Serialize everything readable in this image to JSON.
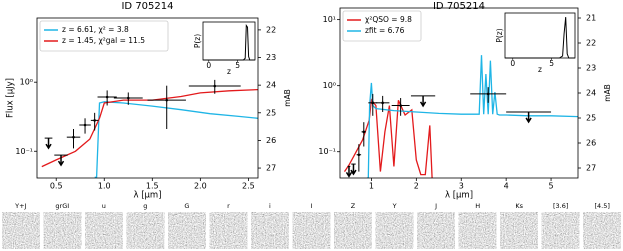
{
  "chart_data": [
    {
      "type": "line",
      "title": "ID 705214",
      "xlabel": "λ [μm]",
      "ylabel": "Flux [μJy]",
      "y2label": "mAB",
      "log_y": true,
      "legend": "upper left",
      "xlim": [
        0.3,
        2.6
      ],
      "xticks": [
        0.5,
        {
          "value": 1,
          "label": "1.0"
        },
        1.5,
        {
          "value": 2,
          "label": "2.0"
        },
        2.5
      ],
      "ylim": [
        0.041,
        8.5
      ],
      "yticks": [
        {
          "value": 0.1,
          "label": "10⁻¹"
        },
        {
          "value": 1,
          "label": "10⁰"
        }
      ],
      "y2lim": [
        27.36,
        21.57
      ],
      "y2ticks": [
        22,
        23,
        24,
        25,
        26,
        27
      ],
      "series": [
        {
          "name": "z = 6.61, χ² = 3.8",
          "color": "#1fb5e6",
          "x": [
            0.9,
            0.92,
            0.95,
            1.0,
            1.2,
            1.5,
            1.8,
            2.1,
            2.4,
            2.6
          ],
          "values": [
            0.042,
            0.042,
            0.5,
            0.52,
            0.5,
            0.45,
            0.4,
            0.35,
            0.32,
            0.3
          ]
        },
        {
          "name": "z = 1.45, χ²gal = 11.5",
          "color": "#e31a1c",
          "x": [
            0.35,
            0.5,
            0.7,
            0.85,
            0.95,
            1.0,
            1.2,
            1.5,
            1.8,
            2.0,
            2.3,
            2.6
          ],
          "values": [
            0.06,
            0.075,
            0.1,
            0.15,
            0.3,
            0.5,
            0.55,
            0.55,
            0.62,
            0.7,
            0.75,
            0.78
          ]
        }
      ],
      "points": {
        "color": "#000000",
        "x": [
          0.42,
          0.55,
          0.68,
          0.8,
          0.9,
          1.03,
          1.25,
          1.65,
          2.15
        ],
        "values": [
          0.155,
          0.088,
          0.16,
          0.24,
          0.28,
          0.61,
          0.59,
          0.55,
          0.88
        ],
        "xerr": [
          0.04,
          0.07,
          0.07,
          0.06,
          0.04,
          0.1,
          0.15,
          0.2,
          0.27
        ],
        "yerr": [
          0,
          0,
          0.05,
          0.06,
          0.08,
          0.15,
          0.12,
          0.34,
          0.2
        ],
        "upper_limits": [
          true,
          true,
          false,
          false,
          false,
          false,
          false,
          false,
          false
        ]
      },
      "inset": {
        "type": "line",
        "xlabel": "z",
        "ylabel": "P(z)",
        "color": "#000000",
        "xlim": [
          -1,
          8
        ],
        "xticks": [
          0,
          5
        ],
        "ylim": [
          0,
          1.1
        ],
        "x": [
          -1,
          0,
          2,
          4,
          6,
          6.3,
          6.5,
          6.7,
          6.9,
          7.1,
          8
        ],
        "values": [
          0,
          0,
          0,
          0,
          0,
          0.05,
          1,
          0.95,
          0.1,
          0,
          0
        ]
      }
    },
    {
      "type": "line",
      "title": "ID 705214",
      "xlabel": "λ [μm]",
      "ylabel": "",
      "y2label": "mAB",
      "log_y": true,
      "legend": "upper left",
      "xlim": [
        0.3,
        5.6
      ],
      "xticks": [
        1,
        2,
        3,
        4,
        5
      ],
      "ylim": [
        0.04,
        15
      ],
      "yticks": [
        {
          "value": 0.1,
          "label": "10⁻¹"
        },
        {
          "value": 1,
          "label": "10⁰"
        },
        {
          "value": 10,
          "label": "10¹"
        }
      ],
      "y2lim": [
        27.4,
        20.6
      ],
      "y2ticks": [
        21,
        22,
        23,
        24,
        25,
        26,
        27
      ],
      "series": [
        {
          "name": "χ²QSO = 9.8",
          "color": "#e31a1c",
          "x": [
            0.4,
            0.5,
            0.8,
            0.95,
            1.0,
            1.1,
            1.2,
            1.3,
            1.4,
            1.5,
            1.6,
            1.75,
            1.9,
            2.0,
            2.1,
            2.2,
            2.3,
            2.35
          ],
          "values": [
            0.05,
            0.063,
            0.15,
            0.3,
            0.61,
            0.5,
            0.05,
            0.2,
            0.5,
            0.06,
            0.6,
            0.36,
            0.43,
            0.075,
            0.045,
            0.045,
            0.25,
            0.04
          ]
        },
        {
          "name": "zfit = 6.76",
          "color": "#1fb5e6",
          "x": [
            0.9,
            0.93,
            0.96,
            1.0,
            1.03,
            1.1,
            1.5,
            2.0,
            2.5,
            3.0,
            3.4,
            3.45,
            3.5,
            3.55,
            3.6,
            3.65,
            3.7,
            3.75,
            3.8,
            3.85,
            4.0,
            4.5,
            5.0,
            5.6
          ],
          "values": [
            0.04,
            0.04,
            0.5,
            1.1,
            0.5,
            0.45,
            0.42,
            0.4,
            0.38,
            0.37,
            0.37,
            2.9,
            0.37,
            1.5,
            0.37,
            2.4,
            0.37,
            0.8,
            0.37,
            0.36,
            0.36,
            0.35,
            0.35,
            0.34
          ]
        }
      ],
      "points": {
        "color": "#000000",
        "x": [
          0.5,
          0.6,
          0.72,
          0.83,
          1.03,
          1.25,
          1.65,
          2.15,
          3.6,
          4.5
        ],
        "values": [
          0.06,
          0.065,
          0.09,
          0.2,
          0.55,
          0.55,
          0.5,
          0.7,
          0.75,
          0.4
        ],
        "xerr": [
          0.03,
          0.05,
          0.05,
          0.05,
          0.1,
          0.15,
          0.2,
          0.27,
          0.4,
          0.5
        ],
        "yerr": [
          0,
          0,
          0.04,
          0.08,
          0.2,
          0.15,
          0.15,
          0,
          0.2,
          0
        ],
        "upper_limits": [
          true,
          true,
          false,
          false,
          false,
          false,
          false,
          true,
          false,
          true
        ]
      },
      "inset": {
        "type": "line",
        "xlabel": "z",
        "ylabel": "P(z)",
        "color": "#000000",
        "xlim": [
          -1,
          8
        ],
        "xticks": [
          0,
          5
        ],
        "ylim": [
          0,
          1.1
        ],
        "x": [
          -1,
          0,
          2,
          4,
          6,
          6.4,
          6.6,
          6.8,
          7.0,
          7.2,
          8
        ],
        "values": [
          0,
          0,
          0,
          0,
          0,
          0.05,
          0.6,
          1,
          0.1,
          0,
          0
        ]
      }
    }
  ],
  "thumbnails": [
    "Y+J",
    "grGI",
    "u",
    "g",
    "G",
    "r",
    "i",
    "I",
    "Z",
    "Y",
    "J",
    "H",
    "Ks",
    "[3.6]",
    "[4.5]"
  ]
}
